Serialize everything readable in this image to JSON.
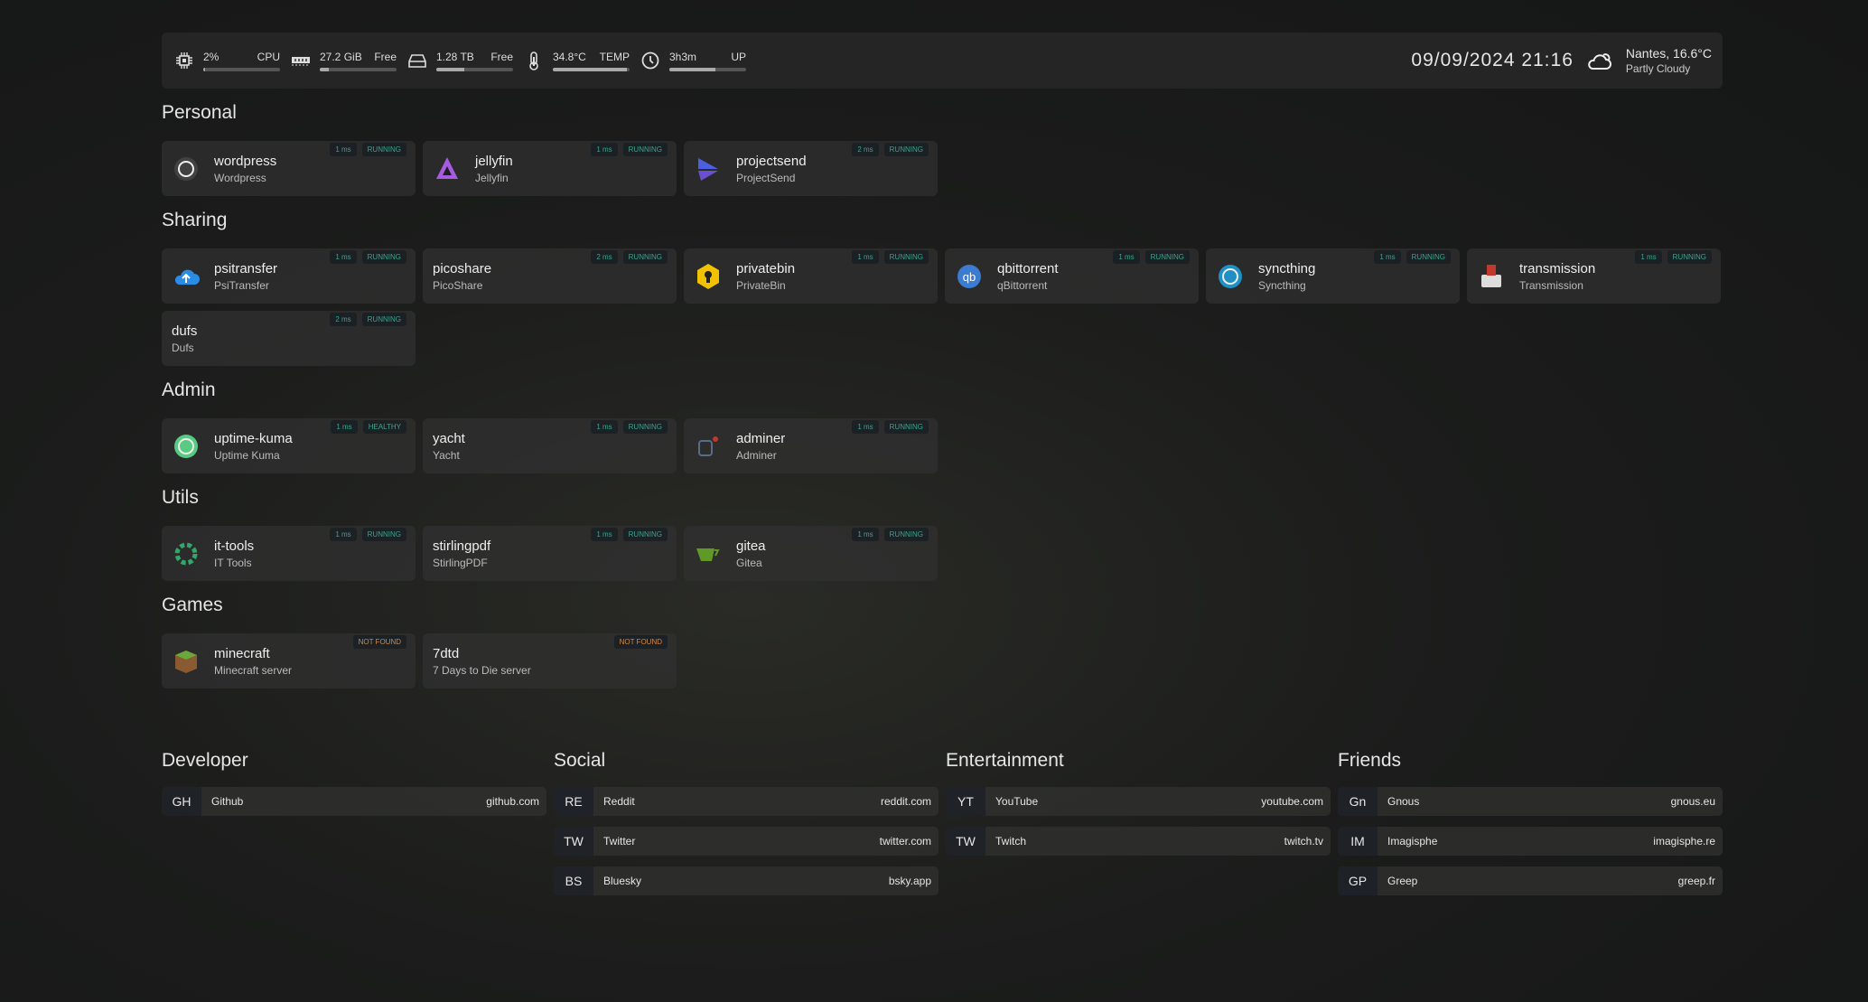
{
  "topbar": {
    "resources": [
      {
        "icon": "cpu-icon",
        "value": "2%",
        "label": "CPU",
        "percent": 2
      },
      {
        "icon": "memory-icon",
        "value": "27.2 GiB",
        "label": "Free",
        "percent": 12
      },
      {
        "icon": "disk-icon",
        "value": "1.28 TB",
        "label": "Free",
        "percent": 37
      },
      {
        "icon": "thermometer-icon",
        "value": "34.8°C",
        "label": "TEMP",
        "percent": 97
      },
      {
        "icon": "clock-icon",
        "value": "3h3m",
        "label": "UP",
        "percent": 60
      }
    ],
    "datetime": "09/09/2024 21:16",
    "weather": {
      "icon": "partly-cloudy-icon",
      "location_temp": "Nantes, 16.6°C",
      "condition": "Partly Cloudy"
    }
  },
  "sections": [
    {
      "title": "Personal",
      "services": [
        {
          "name": "wordpress",
          "desc": "Wordpress",
          "latency": "1 ms",
          "status": "RUNNING",
          "icon": "wordpress-icon",
          "color": "#444444"
        },
        {
          "name": "jellyfin",
          "desc": "Jellyfin",
          "latency": "1 ms",
          "status": "RUNNING",
          "icon": "jellyfin-icon",
          "color": "#a65ce0"
        },
        {
          "name": "projectsend",
          "desc": "ProjectSend",
          "latency": "2 ms",
          "status": "RUNNING",
          "icon": "projectsend-icon",
          "color": "#4b5fe0"
        }
      ]
    },
    {
      "title": "Sharing",
      "services": [
        {
          "name": "psitransfer",
          "desc": "PsiTransfer",
          "latency": "1 ms",
          "status": "RUNNING",
          "icon": "cloud-upload-icon",
          "color": "#2b8ce6"
        },
        {
          "name": "picoshare",
          "desc": "PicoShare",
          "latency": "2 ms",
          "status": "RUNNING",
          "icon": "",
          "color": ""
        },
        {
          "name": "privatebin",
          "desc": "PrivateBin",
          "latency": "1 ms",
          "status": "RUNNING",
          "icon": "privatebin-icon",
          "color": "#f2c200"
        },
        {
          "name": "qbittorrent",
          "desc": "qBittorrent",
          "latency": "1 ms",
          "status": "RUNNING",
          "icon": "qbittorrent-icon",
          "color": "#3b7cd0"
        },
        {
          "name": "syncthing",
          "desc": "Syncthing",
          "latency": "1 ms",
          "status": "RUNNING",
          "icon": "syncthing-icon",
          "color": "#1e9ad6"
        },
        {
          "name": "transmission",
          "desc": "Transmission",
          "latency": "1 ms",
          "status": "RUNNING",
          "icon": "transmission-icon",
          "color": "#c0392b"
        },
        {
          "name": "dufs",
          "desc": "Dufs",
          "latency": "2 ms",
          "status": "RUNNING",
          "icon": "",
          "color": ""
        }
      ]
    },
    {
      "title": "Admin",
      "services": [
        {
          "name": "uptime-kuma",
          "desc": "Uptime Kuma",
          "latency": "1 ms",
          "status": "HEALTHY",
          "icon": "uptime-kuma-icon",
          "color": "#5cdd8b"
        },
        {
          "name": "yacht",
          "desc": "Yacht",
          "latency": "1 ms",
          "status": "RUNNING",
          "icon": "",
          "color": ""
        },
        {
          "name": "adminer",
          "desc": "Adminer",
          "latency": "1 ms",
          "status": "RUNNING",
          "icon": "adminer-icon",
          "color": "#5a6a8a"
        }
      ]
    },
    {
      "title": "Utils",
      "services": [
        {
          "name": "it-tools",
          "desc": "IT Tools",
          "latency": "1 ms",
          "status": "RUNNING",
          "icon": "it-tools-icon",
          "color": "#2fa86a"
        },
        {
          "name": "stirlingpdf",
          "desc": "StirlingPDF",
          "latency": "1 ms",
          "status": "RUNNING",
          "icon": "",
          "color": ""
        },
        {
          "name": "gitea",
          "desc": "Gitea",
          "latency": "1 ms",
          "status": "RUNNING",
          "icon": "gitea-icon",
          "color": "#609926"
        }
      ]
    },
    {
      "title": "Games",
      "services": [
        {
          "name": "minecraft",
          "desc": "Minecraft server",
          "latency": "",
          "status": "NOT FOUND",
          "icon": "minecraft-icon",
          "color": "#6aa83a"
        },
        {
          "name": "7dtd",
          "desc": "7 Days to Die server",
          "latency": "",
          "status": "NOT FOUND",
          "icon": "",
          "color": ""
        }
      ]
    }
  ],
  "bookmarks": [
    {
      "title": "Developer",
      "items": [
        {
          "abbr": "GH",
          "name": "Github",
          "url": "github.com"
        }
      ]
    },
    {
      "title": "Social",
      "items": [
        {
          "abbr": "RE",
          "name": "Reddit",
          "url": "reddit.com"
        },
        {
          "abbr": "TW",
          "name": "Twitter",
          "url": "twitter.com"
        },
        {
          "abbr": "BS",
          "name": "Bluesky",
          "url": "bsky.app"
        }
      ]
    },
    {
      "title": "Entertainment",
      "items": [
        {
          "abbr": "YT",
          "name": "YouTube",
          "url": "youtube.com"
        },
        {
          "abbr": "TW",
          "name": "Twitch",
          "url": "twitch.tv"
        }
      ]
    },
    {
      "title": "Friends",
      "items": [
        {
          "abbr": "Gn",
          "name": "Gnous",
          "url": "gnous.eu"
        },
        {
          "abbr": "IM",
          "name": "Imagisphe",
          "url": "imagisphe.re"
        },
        {
          "abbr": "GP",
          "name": "Greep",
          "url": "greep.fr"
        }
      ]
    }
  ]
}
